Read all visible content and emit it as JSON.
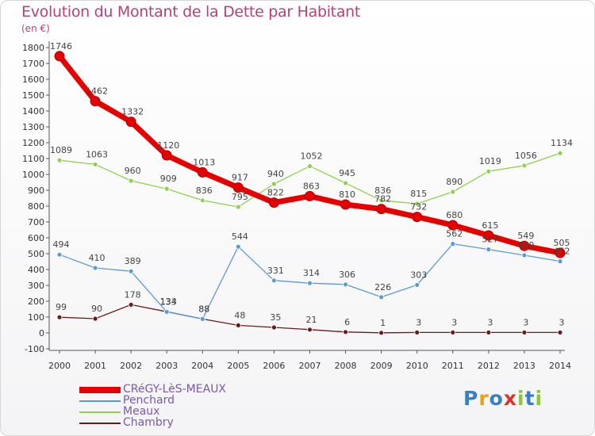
{
  "header": {
    "title": "Evolution du Montant de la Dette par Habitant",
    "unit": "(en €)"
  },
  "brand": {
    "text": "Proxiti"
  },
  "chart_data": {
    "type": "line",
    "title": "Evolution du Montant de la Dette par Habitant",
    "ylabel": "(en €)",
    "xlabel": "",
    "ylim": [
      -100,
      1800
    ],
    "ytick_step": 100,
    "grid": false,
    "legend_position": "bottom-left",
    "x": [
      "2000",
      "2001",
      "2002",
      "2003",
      "2004",
      "2005",
      "2006",
      "2007",
      "2008",
      "2009",
      "2010",
      "2011",
      "2012",
      "2013",
      "2014"
    ],
    "series": [
      {
        "name": "CRéGY-LèS-MEAUX",
        "color": "#e60000",
        "values": [
          1746,
          1462,
          1332,
          1120,
          1013,
          917,
          822,
          863,
          810,
          782,
          732,
          680,
          615,
          549,
          505
        ],
        "labels": [
          "1746",
          "1462",
          "1332",
          "1120",
          "1013",
          "917",
          "822",
          "863",
          "810",
          "782",
          "732",
          "680",
          "615",
          "549",
          "505"
        ]
      },
      {
        "name": "Penchard",
        "color": "#5a9bd5",
        "values": [
          494,
          410,
          389,
          133,
          88,
          544,
          331,
          314,
          306,
          226,
          303,
          562,
          527,
          490,
          452
        ],
        "labels": [
          "494",
          "410",
          "389",
          "133",
          "88",
          "544",
          "331",
          "314",
          "306",
          "226",
          "303",
          "562",
          "527",
          "490",
          "452"
        ]
      },
      {
        "name": "Meaux",
        "color": "#8fd14f",
        "values": [
          1089,
          1063,
          960,
          909,
          836,
          795,
          940,
          1052,
          945,
          836,
          815,
          890,
          1019,
          1056,
          1134
        ],
        "labels": [
          "1089",
          "1063",
          "960",
          "909",
          "836",
          "795",
          "940",
          "1052",
          "945",
          "836",
          "815",
          "890",
          "1019",
          "1056",
          "1134"
        ]
      },
      {
        "name": "Chambry",
        "color": "#6b1a1a",
        "values": [
          99,
          90,
          178,
          134,
          88,
          48,
          35,
          21,
          6,
          1,
          3,
          3,
          3,
          3,
          3
        ],
        "labels": [
          "99",
          "90",
          "178",
          "134",
          "88",
          "48",
          "35",
          "21",
          "6",
          "1",
          "3",
          "3",
          "3",
          "3",
          "3"
        ]
      }
    ]
  }
}
